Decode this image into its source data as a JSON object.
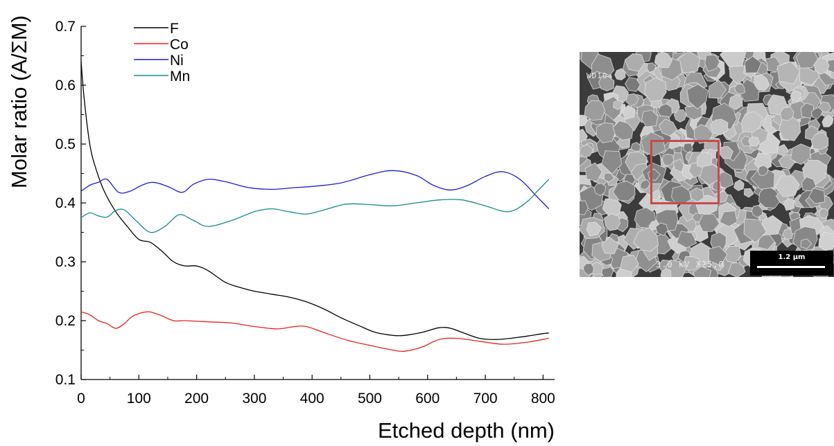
{
  "chart_data": {
    "type": "line",
    "xlabel": "Etched depth (nm)",
    "ylabel": "Molar ratio (A/ΣM)",
    "xlim": [
      0,
      820
    ],
    "ylim": [
      0.1,
      0.7
    ],
    "x_ticks": [
      0,
      100,
      200,
      300,
      400,
      500,
      600,
      700,
      800
    ],
    "x_tick_labels": [
      "0",
      "100",
      "200",
      "300",
      "400",
      "500",
      "600",
      "700",
      "800"
    ],
    "y_ticks": [
      0.1,
      0.2,
      0.3,
      0.4,
      0.5,
      0.6,
      0.7
    ],
    "y_tick_labels": [
      "0.1",
      "0.2",
      "0.3",
      "0.4",
      "0.5",
      "0.6",
      "0.7"
    ],
    "legend_position": "top-left",
    "grid": false,
    "series": [
      {
        "name": "F",
        "color": "#000000",
        "x": [
          0,
          5,
          15,
          25,
          40,
          60,
          80,
          100,
          120,
          140,
          160,
          180,
          200,
          220,
          250,
          280,
          300,
          330,
          360,
          390,
          420,
          450,
          480,
          510,
          540,
          560,
          590,
          620,
          640,
          660,
          690,
          720,
          760,
          800,
          810
        ],
        "y": [
          0.64,
          0.58,
          0.5,
          0.46,
          0.42,
          0.385,
          0.36,
          0.338,
          0.333,
          0.318,
          0.3,
          0.293,
          0.293,
          0.285,
          0.265,
          0.255,
          0.25,
          0.245,
          0.24,
          0.232,
          0.22,
          0.205,
          0.192,
          0.18,
          0.175,
          0.175,
          0.18,
          0.188,
          0.187,
          0.18,
          0.17,
          0.168,
          0.172,
          0.178,
          0.179
        ]
      },
      {
        "name": "Co",
        "color": "#e8231c",
        "x": [
          0,
          15,
          30,
          45,
          60,
          75,
          90,
          115,
          135,
          160,
          180,
          220,
          260,
          300,
          340,
          370,
          390,
          420,
          460,
          500,
          540,
          560,
          590,
          620,
          650,
          690,
          730,
          770,
          810
        ],
        "y": [
          0.215,
          0.21,
          0.2,
          0.195,
          0.187,
          0.195,
          0.208,
          0.215,
          0.21,
          0.2,
          0.2,
          0.198,
          0.196,
          0.19,
          0.186,
          0.19,
          0.19,
          0.18,
          0.167,
          0.158,
          0.15,
          0.148,
          0.155,
          0.168,
          0.17,
          0.165,
          0.16,
          0.163,
          0.17
        ]
      },
      {
        "name": "Ni",
        "color": "#1c1cd6",
        "x": [
          0,
          15,
          30,
          45,
          65,
          85,
          105,
          125,
          150,
          175,
          195,
          220,
          250,
          290,
          330,
          370,
          400,
          450,
          500,
          540,
          580,
          610,
          640,
          670,
          700,
          730,
          760,
          790,
          810
        ],
        "y": [
          0.42,
          0.43,
          0.435,
          0.44,
          0.418,
          0.42,
          0.43,
          0.435,
          0.428,
          0.418,
          0.432,
          0.44,
          0.436,
          0.426,
          0.423,
          0.426,
          0.428,
          0.434,
          0.448,
          0.455,
          0.447,
          0.43,
          0.422,
          0.43,
          0.445,
          0.453,
          0.44,
          0.41,
          0.39
        ]
      },
      {
        "name": "Mn",
        "color": "#158c8c",
        "x": [
          0,
          15,
          30,
          45,
          60,
          75,
          95,
          120,
          145,
          170,
          195,
          220,
          260,
          300,
          330,
          360,
          390,
          420,
          460,
          500,
          540,
          580,
          620,
          660,
          700,
          740,
          770,
          790,
          810
        ],
        "y": [
          0.375,
          0.383,
          0.378,
          0.376,
          0.387,
          0.388,
          0.37,
          0.35,
          0.36,
          0.38,
          0.37,
          0.36,
          0.37,
          0.385,
          0.39,
          0.385,
          0.381,
          0.388,
          0.398,
          0.397,
          0.395,
          0.4,
          0.405,
          0.405,
          0.395,
          0.385,
          0.4,
          0.42,
          0.44
        ]
      }
    ]
  },
  "sem_image": {
    "label_top": "WD10",
    "label_bottom": "3.0 kV X25,0",
    "scale_bar": "1.2 µm",
    "roi_color": "#c84a4a"
  }
}
